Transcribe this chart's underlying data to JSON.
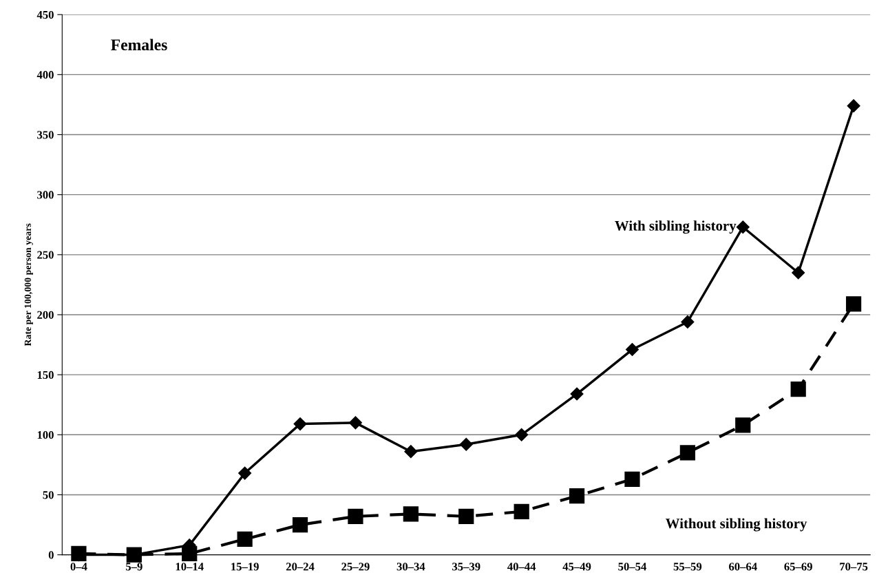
{
  "chart_data": {
    "type": "line",
    "title": "Females",
    "ylabel": "Rate per 100,000 person years",
    "categories": [
      "0–4",
      "5–9",
      "10–14",
      "15–19",
      "20–24",
      "25–29",
      "30–34",
      "35–39",
      "40–44",
      "45–49",
      "50–54",
      "55–59",
      "60–64",
      "65–69",
      "70–75"
    ],
    "series": [
      {
        "name": "With sibling history",
        "color": "#000000",
        "marker": "diamond",
        "line_style": "solid",
        "values": [
          0,
          0,
          8,
          68,
          109,
          110,
          86,
          92,
          100,
          134,
          171,
          194,
          273,
          235,
          374
        ]
      },
      {
        "name": "Without sibling history",
        "color": "#000000",
        "marker": "square",
        "line_style": "dashed",
        "values": [
          1,
          0,
          1,
          13,
          25,
          32,
          34,
          32,
          36,
          49,
          63,
          85,
          108,
          138,
          209
        ]
      }
    ],
    "ylim": [
      0,
      450
    ],
    "yticks": [
      0,
      50,
      100,
      150,
      200,
      250,
      300,
      350,
      400,
      450
    ],
    "grid": "y",
    "legend": false
  }
}
